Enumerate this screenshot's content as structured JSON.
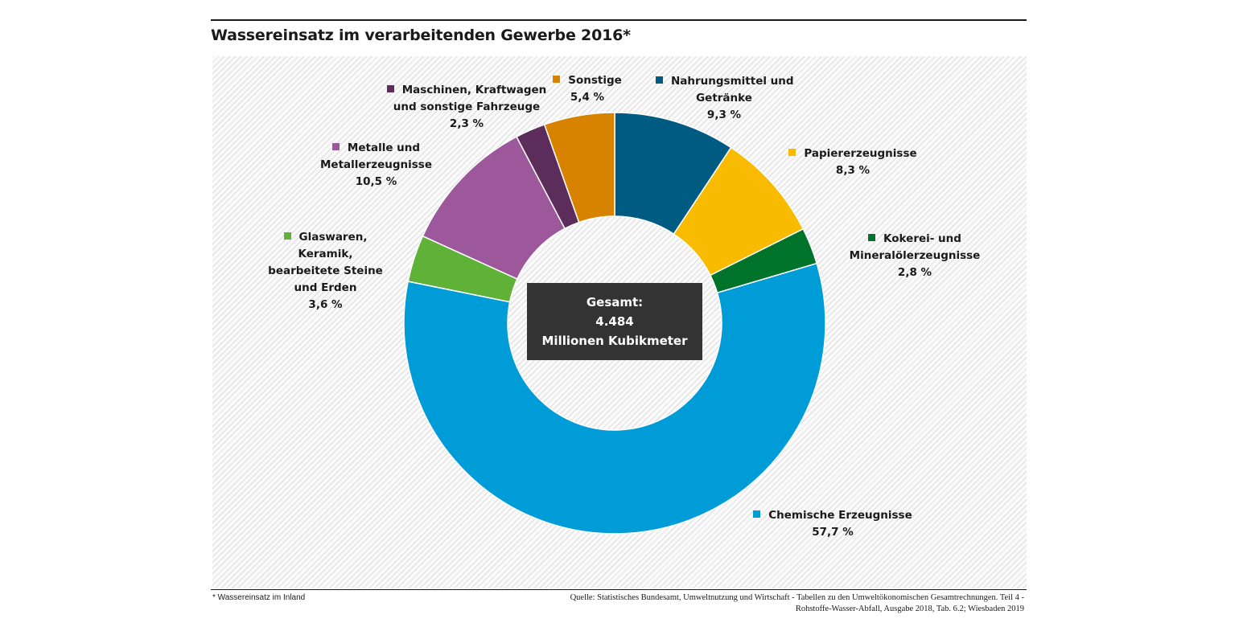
{
  "title": "Wassereinsatz im verarbeitenden Gewerbe 2016*",
  "footnote": "* Wassereinsatz im Inland",
  "source": {
    "line1": "Quelle: Statistisches Bundesamt, Umweltnutzung und Wirtschaft - Tabellen zu den Umweltökonomischen Gesamtrechnungen. Teil 4 -",
    "line2": "Rohstoffe-Wasser-Abfall, Ausgabe 2018, Tab. 6.2; Wiesbaden 2019"
  },
  "center": {
    "line1": "Gesamt:",
    "line2": "4.484",
    "line3": "Millionen Kubikmeter"
  },
  "chart_data": {
    "type": "pie",
    "style": "donut",
    "title": "Wassereinsatz im verarbeitenden Gewerbe 2016*",
    "total": 4484,
    "unit": "Millionen Kubikmeter",
    "slices": [
      {
        "label": [
          "Nahrungsmittel und",
          "Getränke"
        ],
        "value": 9.3,
        "value_text": "9,3 %",
        "color": "#005b82"
      },
      {
        "label": [
          "Papiererzeugnisse"
        ],
        "value": 8.3,
        "value_text": "8,3 %",
        "color": "#f9bb00"
      },
      {
        "label": [
          "Kokerei- und",
          "Mineralölerzeugnisse"
        ],
        "value": 2.8,
        "value_text": "2,8 %",
        "color": "#00732a"
      },
      {
        "label": [
          "Chemische Erzeugnisse"
        ],
        "value": 57.7,
        "value_text": "57,7 %",
        "color": "#009cd7"
      },
      {
        "label": [
          "Glaswaren,",
          "Keramik,",
          "bearbeitete Steine",
          "und Erden"
        ],
        "value": 3.6,
        "value_text": "3,6 %",
        "color": "#5fb137"
      },
      {
        "label": [
          "Metalle und",
          "Metallerzeugnisse"
        ],
        "value": 10.5,
        "value_text": "10,5 %",
        "color": "#9d579b"
      },
      {
        "label": [
          "Maschinen, Kraftwagen",
          "und sonstige Fahrzeuge"
        ],
        "value": 2.3,
        "value_text": "2,3 %",
        "color": "#5c2d5b"
      },
      {
        "label": [
          "Sonstige"
        ],
        "value": 5.4,
        "value_text": "5,4 %",
        "color": "#d78300"
      }
    ]
  }
}
